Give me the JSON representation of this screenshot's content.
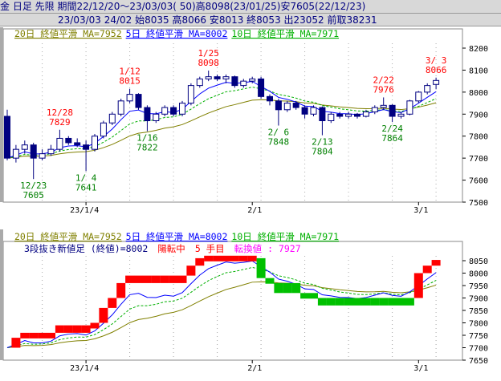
{
  "header": {
    "line1": "金 日足 先限 期間22/12/20～23/03/03( 50)高8098(23/01/25)安7605(22/12/23)",
    "line2": "23/03/03 24/02 始8035 高8066 安8013 終8053 出23052 前取38231"
  },
  "colors": {
    "up": "#ffffff",
    "down": "#000080",
    "ma20": "#808000",
    "ma5": "#0000ff",
    "ma10": "#00b000",
    "brick_up": "#ff0000",
    "brick_down": "#00c000",
    "annot_high": "#ff0000",
    "annot_low": "#008000"
  },
  "legend": {
    "ma20": "20日 終値平滑 MA=7952",
    "ma5": "5日 終値平滑 MA=8002",
    "ma10": "10日 終値平滑 MA=7971"
  },
  "lower_info": {
    "title": "3段抜き新値足 (終値)=8002",
    "state": "陽転中",
    "count": "5 手目",
    "reversal": "転換値 : 7927"
  },
  "x_ticks": [
    "23/1/4",
    "2/1",
    "3/1"
  ],
  "upper_y_ticks": [
    8200,
    8100,
    8000,
    7900,
    7800,
    7700,
    7600,
    7500
  ],
  "lower_y_ticks": [
    8050,
    8000,
    7950,
    7900,
    7850,
    7800,
    7750,
    7700,
    7650
  ],
  "chart_data": {
    "type": "candlestick",
    "dates": [
      "12/20",
      "12/21",
      "12/22",
      "12/23",
      "12/26",
      "12/27",
      "12/28",
      "12/29",
      "12/30",
      "1/4",
      "1/5",
      "1/6",
      "1/10",
      "1/11",
      "1/12",
      "1/13",
      "1/16",
      "1/17",
      "1/18",
      "1/19",
      "1/20",
      "1/23",
      "1/24",
      "1/25",
      "1/26",
      "1/27",
      "1/30",
      "1/31",
      "2/1",
      "2/2",
      "2/3",
      "2/6",
      "2/7",
      "2/8",
      "2/9",
      "2/10",
      "2/13",
      "2/14",
      "2/15",
      "2/16",
      "2/17",
      "2/20",
      "2/21",
      "2/22",
      "2/24",
      "2/27",
      "2/28",
      "3/1",
      "3/2",
      "3/3"
    ],
    "ohlc": [
      [
        7890,
        7920,
        7690,
        7700
      ],
      [
        7700,
        7760,
        7680,
        7740
      ],
      [
        7740,
        7780,
        7720,
        7760
      ],
      [
        7760,
        7770,
        7605,
        7700
      ],
      [
        7700,
        7740,
        7690,
        7720
      ],
      [
        7720,
        7760,
        7710,
        7740
      ],
      [
        7740,
        7829,
        7730,
        7790
      ],
      [
        7790,
        7800,
        7760,
        7770
      ],
      [
        7770,
        7790,
        7750,
        7760
      ],
      [
        7760,
        7780,
        7641,
        7740
      ],
      [
        7740,
        7810,
        7730,
        7800
      ],
      [
        7800,
        7870,
        7790,
        7860
      ],
      [
        7860,
        7910,
        7850,
        7900
      ],
      [
        7900,
        7970,
        7890,
        7960
      ],
      [
        7960,
        8015,
        7950,
        7990
      ],
      [
        7990,
        7995,
        7920,
        7930
      ],
      [
        7930,
        7940,
        7822,
        7870
      ],
      [
        7870,
        7910,
        7860,
        7900
      ],
      [
        7900,
        7940,
        7890,
        7930
      ],
      [
        7930,
        7940,
        7890,
        7900
      ],
      [
        7900,
        7960,
        7890,
        7950
      ],
      [
        7950,
        8040,
        7940,
        8030
      ],
      [
        8030,
        8070,
        8020,
        8060
      ],
      [
        8060,
        8098,
        8050,
        8070
      ],
      [
        8070,
        8080,
        8050,
        8060
      ],
      [
        8060,
        8080,
        8040,
        8070
      ],
      [
        8070,
        8075,
        8020,
        8030
      ],
      [
        8030,
        8060,
        8020,
        8050
      ],
      [
        8050,
        8070,
        8040,
        8060
      ],
      [
        8060,
        8070,
        7970,
        7980
      ],
      [
        7980,
        7990,
        7940,
        7960
      ],
      [
        7960,
        7970,
        7848,
        7920
      ],
      [
        7920,
        7960,
        7910,
        7950
      ],
      [
        7950,
        7960,
        7920,
        7930
      ],
      [
        7930,
        7940,
        7880,
        7900
      ],
      [
        7900,
        7940,
        7890,
        7930
      ],
      [
        7930,
        7935,
        7804,
        7870
      ],
      [
        7870,
        7910,
        7860,
        7900
      ],
      [
        7900,
        7910,
        7880,
        7890
      ],
      [
        7890,
        7910,
        7880,
        7900
      ],
      [
        7900,
        7905,
        7880,
        7890
      ],
      [
        7890,
        7920,
        7885,
        7910
      ],
      [
        7910,
        7940,
        7900,
        7930
      ],
      [
        7930,
        7976,
        7920,
        7940
      ],
      [
        7940,
        7945,
        7864,
        7890
      ],
      [
        7890,
        7910,
        7880,
        7900
      ],
      [
        7900,
        7965,
        7895,
        7960
      ],
      [
        7960,
        8005,
        7950,
        8000
      ],
      [
        8000,
        8040,
        7990,
        8030
      ],
      [
        8035,
        8066,
        8013,
        8053
      ]
    ],
    "annotations": [
      {
        "date": "1/12",
        "value": "8015",
        "type": "high"
      },
      {
        "date": "12/28",
        "value": "7829",
        "type": "high"
      },
      {
        "date": "1/25",
        "value": "8098",
        "type": "high"
      },
      {
        "date": "2/22",
        "value": "7976",
        "type": "high"
      },
      {
        "date": "3/ 3",
        "value": "8066",
        "type": "high"
      },
      {
        "date": "12/23",
        "value": "7605",
        "type": "low"
      },
      {
        "date": "1/ 4",
        "value": "7641",
        "type": "low"
      },
      {
        "date": "1/16",
        "value": "7822",
        "type": "low"
      },
      {
        "date": "2/ 6",
        "value": "7848",
        "type": "low"
      },
      {
        "date": "2/13",
        "value": "7804",
        "type": "low"
      },
      {
        "date": "2/24",
        "value": "7864",
        "type": "low"
      }
    ],
    "upper_ylim": [
      7500,
      8200
    ],
    "lower_ylim": [
      7650,
      8050
    ],
    "grid": "dotted-vertical"
  }
}
